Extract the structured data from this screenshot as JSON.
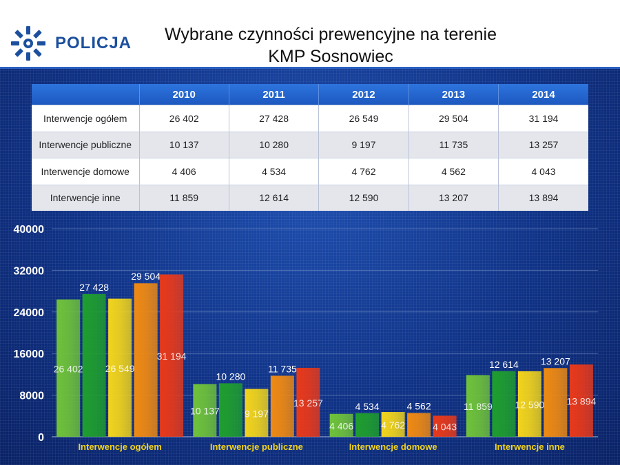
{
  "header": {
    "logo_text": "POLICJA",
    "title_line1": "Wybrane czynności prewencyjne na terenie",
    "title_line2": "KMP Sosnowiec"
  },
  "table": {
    "corner": "",
    "years": [
      "2010",
      "2011",
      "2012",
      "2013",
      "2014"
    ],
    "rows": [
      {
        "label": "Interwencje ogółem",
        "values": [
          "26 402",
          "27 428",
          "26 549",
          "29 504",
          "31 194"
        ]
      },
      {
        "label": "Interwencje publiczne",
        "values": [
          "10 137",
          "10 280",
          "9 197",
          "11 735",
          "13 257"
        ]
      },
      {
        "label": "Interwencje domowe",
        "values": [
          "4 406",
          "4 534",
          "4 762",
          "4 562",
          "4 043"
        ]
      },
      {
        "label": "Interwencje inne",
        "values": [
          "11 859",
          "12 614",
          "12 590",
          "13 207",
          "13 894"
        ]
      }
    ]
  },
  "chart_data": {
    "type": "bar",
    "categories": [
      "Interwencje ogółem",
      "Interwencje publiczne",
      "Interwencje domowe",
      "Interwencje inne"
    ],
    "series": [
      {
        "values": [
          26402,
          10137,
          4406,
          11859
        ],
        "color": "#6fc23a"
      },
      {
        "values": [
          27428,
          10280,
          4534,
          12614
        ],
        "color": "#1f9e2e"
      },
      {
        "values": [
          26549,
          9197,
          4762,
          12590
        ],
        "color": "#f2d41c"
      },
      {
        "values": [
          29504,
          11735,
          4562,
          13207
        ],
        "color": "#f08a12"
      },
      {
        "values": [
          31194,
          13257,
          4043,
          13894
        ],
        "color": "#e8391a"
      }
    ],
    "data_labels": [
      [
        "26 402",
        "27 428",
        "26 549",
        "29 504",
        "31 194"
      ],
      [
        "10 137",
        "10 280",
        "9 197",
        "11 735",
        "13 257"
      ],
      [
        "4 406",
        "4 534",
        "4 762",
        "4 562",
        "4 043"
      ],
      [
        "11 859",
        "12 614",
        "12 590",
        "13 207",
        "13 894"
      ]
    ],
    "label_inside": [
      [
        true,
        false,
        true,
        false,
        true
      ],
      [
        true,
        false,
        true,
        false,
        true
      ],
      [
        true,
        false,
        true,
        false,
        true
      ],
      [
        true,
        false,
        true,
        false,
        true
      ]
    ],
    "y_ticks": [
      0,
      8000,
      16000,
      24000,
      32000,
      40000
    ],
    "ylim": [
      0,
      40000
    ],
    "grid": true,
    "category_label_color": "#f2d41c"
  }
}
